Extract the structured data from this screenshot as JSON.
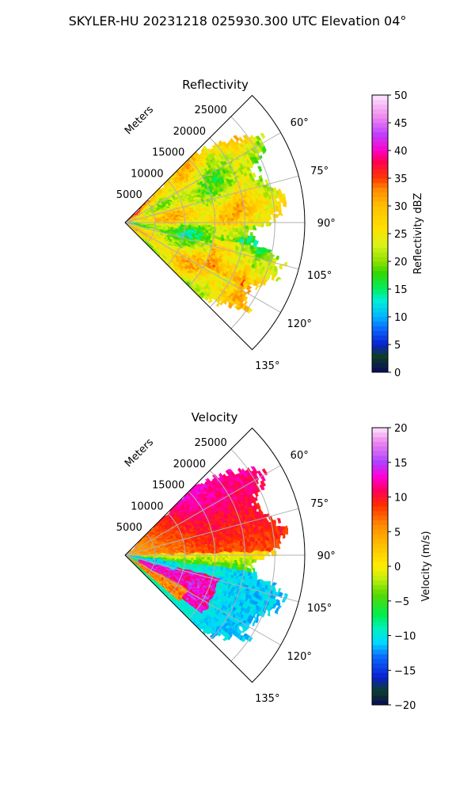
{
  "figure": {
    "title": "SKYLER-HU  20231218  025930.300 UTC Elevation 04°"
  },
  "chart_data": [
    {
      "type": "heatmap",
      "projection": "polar-sector",
      "title": "Reflectivity",
      "radial_label": "Meters",
      "radial_ticks": [
        5000,
        10000,
        15000,
        20000,
        25000
      ],
      "radial_tick_labels": [
        "5000",
        "10000",
        "15000",
        "20000",
        "25000"
      ],
      "rmax": 30000,
      "angular_range_deg": [
        45,
        135
      ],
      "angular_ticks_deg": [
        60,
        75,
        90,
        105,
        120,
        135
      ],
      "angular_tick_labels": [
        "60°",
        "75°",
        "90°",
        "105°",
        "120°",
        "135°"
      ],
      "grid": true,
      "colorbar": {
        "label": "Reflectivity dBZ",
        "range": [
          0,
          50
        ],
        "ticks": [
          0,
          5,
          10,
          15,
          20,
          25,
          30,
          35,
          40,
          45,
          50
        ],
        "tick_labels": [
          "0",
          "5",
          "10",
          "15",
          "20",
          "25",
          "30",
          "35",
          "40",
          "45",
          "50"
        ],
        "stops": [
          {
            "v": 0,
            "c": "#0a0a5a"
          },
          {
            "v": 3,
            "c": "#0c3f26"
          },
          {
            "v": 5,
            "c": "#0a1ed2"
          },
          {
            "v": 8,
            "c": "#0a6cff"
          },
          {
            "v": 10,
            "c": "#00b4ff"
          },
          {
            "v": 13,
            "c": "#00f0d6"
          },
          {
            "v": 15,
            "c": "#00ee60"
          },
          {
            "v": 18,
            "c": "#35d600"
          },
          {
            "v": 20,
            "c": "#8fe000"
          },
          {
            "v": 23,
            "c": "#d8f21a"
          },
          {
            "v": 26,
            "c": "#ffe000"
          },
          {
            "v": 30,
            "c": "#ffc000"
          },
          {
            "v": 33,
            "c": "#ff8a00"
          },
          {
            "v": 35,
            "c": "#ff3a00"
          },
          {
            "v": 38,
            "c": "#ff0050"
          },
          {
            "v": 40,
            "c": "#ff00c8"
          },
          {
            "v": 43,
            "c": "#c040ff"
          },
          {
            "v": 46,
            "c": "#ee88ee"
          },
          {
            "v": 50,
            "c": "#fce6fc"
          }
        ]
      }
    },
    {
      "type": "heatmap",
      "projection": "polar-sector",
      "title": "Velocity",
      "radial_label": "Meters",
      "radial_ticks": [
        5000,
        10000,
        15000,
        20000,
        25000
      ],
      "radial_tick_labels": [
        "5000",
        "10000",
        "15000",
        "20000",
        "25000"
      ],
      "rmax": 30000,
      "angular_range_deg": [
        45,
        135
      ],
      "angular_ticks_deg": [
        60,
        75,
        90,
        105,
        120,
        135
      ],
      "angular_tick_labels": [
        "60°",
        "75°",
        "90°",
        "105°",
        "120°",
        "135°"
      ],
      "grid": true,
      "colorbar": {
        "label": "Velocity (m/s)",
        "range": [
          -20,
          20
        ],
        "ticks": [
          -20,
          -15,
          -10,
          -5,
          0,
          5,
          10,
          15,
          20
        ],
        "tick_labels": [
          "−20",
          "−15",
          "−10",
          "−5",
          "0",
          "5",
          "10",
          "15",
          "20"
        ],
        "stops": [
          {
            "v": -20,
            "c": "#0a0a5a"
          },
          {
            "v": -18,
            "c": "#0c3f26"
          },
          {
            "v": -16,
            "c": "#0a1ed2"
          },
          {
            "v": -13,
            "c": "#0a6cff"
          },
          {
            "v": -11,
            "c": "#00d8ff"
          },
          {
            "v": -9,
            "c": "#00f0c0"
          },
          {
            "v": -7,
            "c": "#00ee50"
          },
          {
            "v": -4,
            "c": "#58d800"
          },
          {
            "v": -2,
            "c": "#b8ee10"
          },
          {
            "v": 0,
            "c": "#ffee00"
          },
          {
            "v": 3,
            "c": "#ffc000"
          },
          {
            "v": 6,
            "c": "#ff8a00"
          },
          {
            "v": 9,
            "c": "#ff2a00"
          },
          {
            "v": 11,
            "c": "#ff0060"
          },
          {
            "v": 13,
            "c": "#ff00d8"
          },
          {
            "v": 15,
            "c": "#b040ff"
          },
          {
            "v": 18,
            "c": "#ee88ee"
          },
          {
            "v": 20,
            "c": "#fce6fc"
          }
        ]
      }
    }
  ]
}
